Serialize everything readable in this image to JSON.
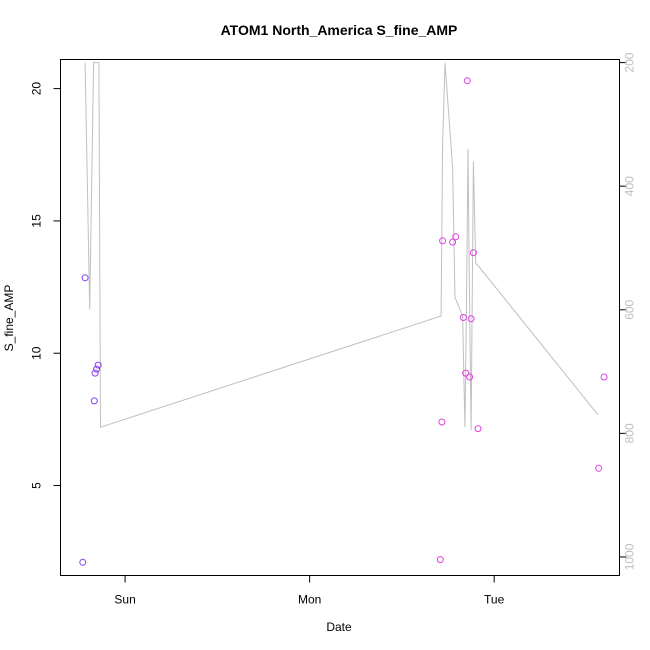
{
  "chart_data": {
    "type": "scatter",
    "title": "ATOM1 North_America S_fine_AMP",
    "xlabel": "Date",
    "ylabel": "S_fine_AMP",
    "x_ticks": [
      {
        "label": "Sun",
        "value": 24
      },
      {
        "label": "Mon",
        "value": 48
      },
      {
        "label": "Tue",
        "value": 72
      }
    ],
    "xlim": [
      15.6,
      88.3
    ],
    "ylim": [
      1.6,
      21.1
    ],
    "y_ticks": [
      5,
      10,
      15,
      20
    ],
    "y2lim": [
      1030,
      195
    ],
    "y2_ticks": [
      200,
      400,
      600,
      800,
      1000
    ],
    "grid": false,
    "points": [
      {
        "x": 18.5,
        "y": 2.1,
        "color": "#8a3ff0"
      },
      {
        "x": 18.8,
        "y": 12.85,
        "color": "#8a3ff0"
      },
      {
        "x": 20.0,
        "y": 8.2,
        "color": "#8a3ff0"
      },
      {
        "x": 20.1,
        "y": 9.25,
        "color": "#8a3ff0"
      },
      {
        "x": 20.3,
        "y": 9.4,
        "color": "#8a3ff0"
      },
      {
        "x": 20.5,
        "y": 9.55,
        "color": "#8a3ff0"
      },
      {
        "x": 65.0,
        "y": 2.2,
        "color": "#e040e0"
      },
      {
        "x": 65.2,
        "y": 7.4,
        "color": "#e040e0"
      },
      {
        "x": 65.3,
        "y": 14.25,
        "color": "#e040e0"
      },
      {
        "x": 66.6,
        "y": 14.2,
        "color": "#e040e0"
      },
      {
        "x": 67.0,
        "y": 14.4,
        "color": "#e040e0"
      },
      {
        "x": 68.0,
        "y": 11.35,
        "color": "#e040e0"
      },
      {
        "x": 68.3,
        "y": 9.25,
        "color": "#e040e0"
      },
      {
        "x": 68.5,
        "y": 20.3,
        "color": "#e040e0"
      },
      {
        "x": 68.8,
        "y": 9.1,
        "color": "#e040e0"
      },
      {
        "x": 69.0,
        "y": 11.3,
        "color": "#e040e0"
      },
      {
        "x": 69.3,
        "y": 13.8,
        "color": "#e040e0"
      },
      {
        "x": 69.9,
        "y": 7.15,
        "color": "#e040e0"
      },
      {
        "x": 85.6,
        "y": 5.65,
        "color": "#e040e0"
      },
      {
        "x": 86.3,
        "y": 9.1,
        "color": "#e040e0"
      }
    ],
    "secondary_series": {
      "color": "#c0c0c0",
      "axis": "right",
      "x": [
        18.8,
        19.4,
        19.9,
        20.2,
        20.6,
        20.8,
        65.1,
        65.3,
        65.6,
        66.6,
        66.9,
        67.9,
        68.2,
        68.4,
        68.6,
        68.8,
        69.0,
        69.3,
        69.6,
        70.0,
        85.5
      ],
      "y": [
        200,
        600,
        200,
        200,
        200,
        790,
        610,
        330,
        200,
        370,
        580,
        610,
        790,
        590,
        340,
        590,
        795,
        360,
        525,
        530,
        770
      ]
    }
  }
}
